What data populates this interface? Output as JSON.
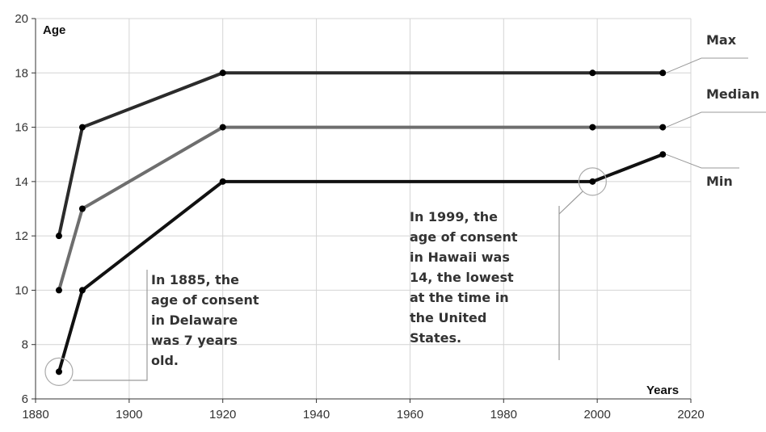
{
  "chart_data": {
    "type": "line",
    "xlabel": "Years",
    "ylabel": "Age",
    "xlim": [
      1880,
      2020
    ],
    "ylim": [
      6,
      20
    ],
    "x_ticks": [
      "1880",
      "1900",
      "1920",
      "1940",
      "1960",
      "1980",
      "2000",
      "2020"
    ],
    "y_ticks": [
      "6",
      "8",
      "10",
      "12",
      "14",
      "16",
      "18",
      "20"
    ],
    "grid": true,
    "series": [
      {
        "name": "Max",
        "color": "#2b2b2b",
        "points": [
          [
            1885,
            12
          ],
          [
            1890,
            16
          ],
          [
            1920,
            18
          ],
          [
            1999,
            18
          ],
          [
            2014,
            18
          ]
        ]
      },
      {
        "name": "Median",
        "color": "#6e6e6e",
        "points": [
          [
            1885,
            10
          ],
          [
            1890,
            13
          ],
          [
            1920,
            16
          ],
          [
            1999,
            16
          ],
          [
            2014,
            16
          ]
        ]
      },
      {
        "name": "Min",
        "color": "#111111",
        "points": [
          [
            1885,
            7
          ],
          [
            1890,
            10
          ],
          [
            1920,
            14
          ],
          [
            1999,
            14
          ],
          [
            2014,
            15
          ]
        ]
      }
    ],
    "annotations": [
      {
        "id": "delaware",
        "lines": [
          "In 1885, the",
          "age of consent",
          "in Delaware",
          "was 7 years",
          "old."
        ],
        "point": [
          1885,
          7
        ]
      },
      {
        "id": "hawaii",
        "lines": [
          "In 1999, the",
          "age of consent",
          "in Hawaii was",
          "14, the lowest",
          "at the time in",
          "the United",
          "States."
        ],
        "point": [
          1999,
          14
        ]
      }
    ]
  }
}
